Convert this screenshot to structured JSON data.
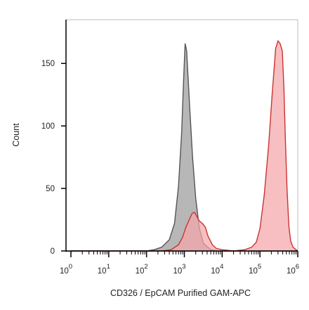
{
  "chart_data": {
    "type": "area",
    "xlabel": "CD326 / EpCAM Purified GAM-APC",
    "ylabel": "Count",
    "x_scale": "log",
    "xlim": [
      1,
      1000000
    ],
    "ylim": [
      0,
      185
    ],
    "x_tick_labels": [
      {
        "base": "10",
        "exp": "0",
        "value": 1
      },
      {
        "base": "10",
        "exp": "1",
        "value": 10
      },
      {
        "base": "10",
        "exp": "2",
        "value": 100
      },
      {
        "base": "10",
        "exp": "3",
        "value": 1000
      },
      {
        "base": "10",
        "exp": "4",
        "value": 10000
      },
      {
        "base": "10",
        "exp": "5",
        "value": 100000
      },
      {
        "base": "10",
        "exp": "6",
        "value": 1000000
      }
    ],
    "y_ticks": [
      0,
      50,
      100,
      150
    ],
    "grid": false,
    "legend": "none",
    "series": [
      {
        "color": "#b3b3b3",
        "stroke": "#555555",
        "points": [
          [
            1,
            0
          ],
          [
            100,
            0
          ],
          [
            160,
            1
          ],
          [
            250,
            3
          ],
          [
            400,
            9
          ],
          [
            550,
            22
          ],
          [
            700,
            52
          ],
          [
            850,
            95
          ],
          [
            950,
            135
          ],
          [
            1050,
            166
          ],
          [
            1150,
            160
          ],
          [
            1250,
            140
          ],
          [
            1400,
            112
          ],
          [
            1650,
            75
          ],
          [
            2000,
            42
          ],
          [
            2500,
            18
          ],
          [
            3200,
            6
          ],
          [
            5000,
            1
          ],
          [
            8000,
            0
          ],
          [
            1000000,
            0
          ]
        ]
      },
      {
        "color": "#f4a6a9",
        "stroke": "#cc3333",
        "points": [
          [
            1,
            0
          ],
          [
            250,
            0
          ],
          [
            450,
            1
          ],
          [
            700,
            5
          ],
          [
            900,
            11
          ],
          [
            1100,
            19
          ],
          [
            1350,
            25
          ],
          [
            1600,
            30
          ],
          [
            1850,
            31
          ],
          [
            2100,
            28
          ],
          [
            2500,
            24
          ],
          [
            3000,
            22
          ],
          [
            3600,
            19
          ],
          [
            4200,
            12
          ],
          [
            5500,
            5
          ],
          [
            7000,
            2
          ],
          [
            10000,
            1
          ],
          [
            20000,
            0
          ],
          [
            40000,
            1
          ],
          [
            60000,
            3
          ],
          [
            80000,
            7
          ],
          [
            100000,
            18
          ],
          [
            130000,
            45
          ],
          [
            170000,
            85
          ],
          [
            210000,
            125
          ],
          [
            260000,
            162
          ],
          [
            300000,
            168
          ],
          [
            340000,
            166
          ],
          [
            390000,
            160
          ],
          [
            430000,
            130
          ],
          [
            470000,
            90
          ],
          [
            520000,
            50
          ],
          [
            580000,
            20
          ],
          [
            650000,
            8
          ],
          [
            750000,
            3
          ],
          [
            1000000,
            0
          ]
        ]
      }
    ]
  }
}
